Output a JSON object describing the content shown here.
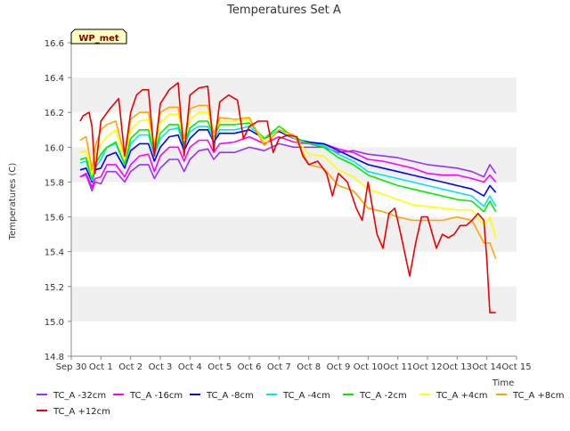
{
  "chart_data": {
    "type": "line",
    "title": "Temperatures Set A",
    "xlabel": "Time",
    "ylabel": "Temperatures (C)",
    "badge": "WP_met",
    "xlim": [
      0,
      15
    ],
    "ylim": [
      14.8,
      16.6
    ],
    "x_ticks": [
      {
        "v": 0,
        "label": "Sep 30"
      },
      {
        "v": 1,
        "label": "Oct 1"
      },
      {
        "v": 2,
        "label": "Oct 2"
      },
      {
        "v": 3,
        "label": "Oct 3"
      },
      {
        "v": 4,
        "label": "Oct 4"
      },
      {
        "v": 5,
        "label": "Oct 5"
      },
      {
        "v": 6,
        "label": "Oct 6"
      },
      {
        "v": 7,
        "label": "Oct 7"
      },
      {
        "v": 8,
        "label": "Oct 8"
      },
      {
        "v": 9,
        "label": "Oct 9"
      },
      {
        "v": 10,
        "label": "Oct 10"
      },
      {
        "v": 11,
        "label": "Oct 11"
      },
      {
        "v": 12,
        "label": "Oct 12"
      },
      {
        "v": 13,
        "label": "Oct 13"
      },
      {
        "v": 14,
        "label": "Oct 14"
      },
      {
        "v": 15,
        "label": "Oct 15"
      }
    ],
    "y_ticks": [
      "14.8",
      "15.0",
      "15.2",
      "15.4",
      "15.6",
      "15.8",
      "16.0",
      "16.2",
      "16.4",
      "16.6"
    ],
    "grid": "alternating-horizontal-bands",
    "legend_position": "bottom",
    "series": [
      {
        "name": "TC_A -32cm",
        "color": "#9b30ff",
        "x": [
          0.3,
          0.5,
          0.7,
          0.8,
          1.0,
          1.2,
          1.5,
          1.8,
          2.0,
          2.3,
          2.6,
          2.8,
          3.0,
          3.3,
          3.6,
          3.8,
          4.0,
          4.3,
          4.6,
          4.8,
          5.0,
          5.5,
          6.0,
          6.5,
          7.0,
          7.5,
          8.0,
          8.5,
          9.0,
          9.5,
          10.0,
          10.5,
          11.0,
          11.5,
          12.0,
          12.5,
          13.0,
          13.5,
          13.9,
          14.1,
          14.3
        ],
        "y": [
          15.83,
          15.84,
          15.75,
          15.8,
          15.79,
          15.86,
          15.86,
          15.8,
          15.86,
          15.9,
          15.9,
          15.82,
          15.88,
          15.93,
          15.93,
          15.86,
          15.93,
          15.98,
          15.99,
          15.93,
          15.97,
          15.97,
          16.0,
          15.98,
          16.02,
          16.0,
          16.0,
          16.0,
          15.97,
          15.98,
          15.96,
          15.95,
          15.94,
          15.92,
          15.9,
          15.89,
          15.88,
          15.86,
          15.83,
          15.9,
          15.85
        ]
      },
      {
        "name": "TC_A -16cm",
        "color": "#ff00ff",
        "x": [
          0.3,
          0.5,
          0.7,
          0.8,
          1.0,
          1.2,
          1.5,
          1.8,
          2.0,
          2.3,
          2.6,
          2.8,
          3.0,
          3.3,
          3.6,
          3.8,
          4.0,
          4.3,
          4.6,
          4.8,
          5.0,
          5.5,
          6.0,
          6.5,
          7.0,
          7.5,
          8.0,
          8.5,
          9.0,
          9.5,
          10.0,
          10.5,
          11.0,
          11.5,
          12.0,
          12.5,
          13.0,
          13.5,
          13.9,
          14.1,
          14.3
        ],
        "y": [
          15.83,
          15.85,
          15.77,
          15.82,
          15.83,
          15.9,
          15.9,
          15.83,
          15.9,
          15.95,
          15.96,
          15.86,
          15.95,
          16.0,
          16.0,
          15.92,
          16.0,
          16.04,
          16.04,
          15.97,
          16.02,
          16.03,
          16.06,
          16.02,
          16.06,
          16.03,
          16.02,
          16.02,
          15.99,
          15.97,
          15.93,
          15.92,
          15.9,
          15.88,
          15.85,
          15.84,
          15.84,
          15.82,
          15.8,
          15.84,
          15.8
        ]
      },
      {
        "name": "TC_A -8cm",
        "color": "#0000ff",
        "x": [
          0.3,
          0.5,
          0.7,
          0.8,
          1.0,
          1.2,
          1.5,
          1.8,
          2.0,
          2.3,
          2.6,
          2.8,
          3.0,
          3.3,
          3.6,
          3.8,
          4.0,
          4.3,
          4.6,
          4.8,
          5.0,
          5.5,
          6.0,
          6.5,
          7.0,
          7.5,
          8.0,
          8.5,
          9.0,
          9.5,
          10.0,
          10.5,
          11.0,
          11.5,
          12.0,
          12.5,
          13.0,
          13.5,
          13.9,
          14.1,
          14.3
        ],
        "y": [
          15.87,
          15.88,
          15.8,
          15.87,
          15.88,
          15.95,
          15.97,
          15.88,
          15.98,
          16.02,
          16.02,
          15.92,
          16.0,
          16.06,
          16.07,
          15.98,
          16.05,
          16.1,
          16.1,
          16.03,
          16.08,
          16.08,
          16.1,
          16.05,
          16.09,
          16.05,
          16.03,
          16.02,
          15.98,
          15.94,
          15.9,
          15.88,
          15.86,
          15.84,
          15.82,
          15.8,
          15.78,
          15.76,
          15.72,
          15.78,
          15.74
        ]
      },
      {
        "name": "TC_A -4cm",
        "color": "#00e5ee",
        "x": [
          0.3,
          0.5,
          0.7,
          0.8,
          1.0,
          1.2,
          1.5,
          1.8,
          2.0,
          2.3,
          2.6,
          2.8,
          3.0,
          3.3,
          3.6,
          3.8,
          4.0,
          4.3,
          4.6,
          4.8,
          5.0,
          5.5,
          6.0,
          6.5,
          7.0,
          7.5,
          8.0,
          8.5,
          9.0,
          9.5,
          10.0,
          10.5,
          11.0,
          11.5,
          12.0,
          12.5,
          13.0,
          13.5,
          13.9,
          14.1,
          14.3
        ],
        "y": [
          15.91,
          15.92,
          15.81,
          15.88,
          15.93,
          16.0,
          16.02,
          15.9,
          16.02,
          16.07,
          16.07,
          15.95,
          16.05,
          16.1,
          16.11,
          16.0,
          16.09,
          16.12,
          16.12,
          16.04,
          16.1,
          16.1,
          16.12,
          16.05,
          16.1,
          16.05,
          16.02,
          16.01,
          15.96,
          15.92,
          15.86,
          15.84,
          15.82,
          15.8,
          15.78,
          15.76,
          15.74,
          15.72,
          15.66,
          15.72,
          15.66
        ]
      },
      {
        "name": "TC_A -2cm",
        "color": "#00ee00",
        "x": [
          0.3,
          0.5,
          0.7,
          0.8,
          1.0,
          1.2,
          1.5,
          1.8,
          2.0,
          2.3,
          2.6,
          2.8,
          3.0,
          3.3,
          3.6,
          3.8,
          4.0,
          4.3,
          4.6,
          4.8,
          5.0,
          5.5,
          6.0,
          6.5,
          7.0,
          7.5,
          8.0,
          8.5,
          9.0,
          9.5,
          10.0,
          10.5,
          11.0,
          11.5,
          12.0,
          12.5,
          13.0,
          13.5,
          13.9,
          14.1,
          14.3
        ],
        "y": [
          15.93,
          15.94,
          15.82,
          15.9,
          15.96,
          16.0,
          16.03,
          15.9,
          16.05,
          16.1,
          16.1,
          15.96,
          16.08,
          16.13,
          16.13,
          16.02,
          16.11,
          16.15,
          16.15,
          16.06,
          16.13,
          16.13,
          16.14,
          16.05,
          16.12,
          16.06,
          16.02,
          16.0,
          15.94,
          15.9,
          15.84,
          15.81,
          15.78,
          15.76,
          15.74,
          15.72,
          15.7,
          15.69,
          15.63,
          15.69,
          15.63
        ]
      },
      {
        "name": "TC_A +4cm",
        "color": "#ffff00",
        "x": [
          0.3,
          0.5,
          0.7,
          0.8,
          1.0,
          1.2,
          1.5,
          1.8,
          2.0,
          2.3,
          2.6,
          2.8,
          3.0,
          3.3,
          3.6,
          3.8,
          4.0,
          4.3,
          4.6,
          4.8,
          5.0,
          5.5,
          6.0,
          6.5,
          7.0,
          7.5,
          8.0,
          8.5,
          9.0,
          9.5,
          10.0,
          10.5,
          11.0,
          11.5,
          12.0,
          12.5,
          13.0,
          13.5,
          13.9,
          14.1,
          14.3
        ],
        "y": [
          15.97,
          15.98,
          15.84,
          15.95,
          16.02,
          16.06,
          16.1,
          15.93,
          16.1,
          16.15,
          16.16,
          15.98,
          16.14,
          16.19,
          16.19,
          16.04,
          16.16,
          16.2,
          16.2,
          16.07,
          16.15,
          16.15,
          16.16,
          16.03,
          16.1,
          16.06,
          15.96,
          15.95,
          15.87,
          15.83,
          15.76,
          15.73,
          15.7,
          15.67,
          15.66,
          15.65,
          15.64,
          15.64,
          15.55,
          15.6,
          15.48
        ]
      },
      {
        "name": "TC_A +8cm",
        "color": "#ffa500",
        "x": [
          0.3,
          0.5,
          0.7,
          0.8,
          1.0,
          1.2,
          1.5,
          1.8,
          2.0,
          2.3,
          2.6,
          2.8,
          3.0,
          3.3,
          3.6,
          3.8,
          4.0,
          4.3,
          4.6,
          4.8,
          5.0,
          5.5,
          6.0,
          6.5,
          7.0,
          7.5,
          8.0,
          8.5,
          9.0,
          9.5,
          10.0,
          10.5,
          11.0,
          11.5,
          12.0,
          12.5,
          13.0,
          13.5,
          13.9,
          14.1,
          14.3
        ],
        "y": [
          16.04,
          16.06,
          15.87,
          16.0,
          16.1,
          16.13,
          16.15,
          15.95,
          16.16,
          16.2,
          16.2,
          16.0,
          16.2,
          16.23,
          16.23,
          16.05,
          16.22,
          16.24,
          16.24,
          16.08,
          16.17,
          16.16,
          16.17,
          16.01,
          16.1,
          16.07,
          15.9,
          15.88,
          15.78,
          15.75,
          15.65,
          15.63,
          15.6,
          15.58,
          15.58,
          15.58,
          15.6,
          15.58,
          15.45,
          15.45,
          15.36
        ]
      },
      {
        "name": "TC_A +12cm",
        "color": "#ee0000",
        "x": [
          0.3,
          0.4,
          0.6,
          0.7,
          0.8,
          1.0,
          1.3,
          1.6,
          1.8,
          2.0,
          2.2,
          2.4,
          2.6,
          2.8,
          3.0,
          3.3,
          3.6,
          3.8,
          4.0,
          4.3,
          4.6,
          4.8,
          5.0,
          5.3,
          5.6,
          5.8,
          6.0,
          6.3,
          6.6,
          6.8,
          7.0,
          7.3,
          7.6,
          7.8,
          8.0,
          8.3,
          8.6,
          8.8,
          9.0,
          9.3,
          9.6,
          9.8,
          10.0,
          10.3,
          10.5,
          10.7,
          10.9,
          11.1,
          11.4,
          11.6,
          11.8,
          12.0,
          12.3,
          12.5,
          12.7,
          12.9,
          13.1,
          13.3,
          13.5,
          13.7,
          13.9,
          14.0,
          14.1,
          14.3
        ],
        "y": [
          16.15,
          16.18,
          16.2,
          16.12,
          15.85,
          16.15,
          16.22,
          16.28,
          15.95,
          16.2,
          16.3,
          16.33,
          16.33,
          15.95,
          16.25,
          16.33,
          16.37,
          15.95,
          16.3,
          16.34,
          16.35,
          15.98,
          16.26,
          16.3,
          16.27,
          16.05,
          16.12,
          16.15,
          16.15,
          15.97,
          16.05,
          16.07,
          16.06,
          15.95,
          15.9,
          15.92,
          15.85,
          15.72,
          15.85,
          15.8,
          15.65,
          15.58,
          15.8,
          15.5,
          15.42,
          15.62,
          15.65,
          15.5,
          15.26,
          15.45,
          15.6,
          15.6,
          15.42,
          15.5,
          15.48,
          15.5,
          15.55,
          15.55,
          15.58,
          15.62,
          15.58,
          15.35,
          15.05,
          15.05
        ]
      }
    ]
  }
}
